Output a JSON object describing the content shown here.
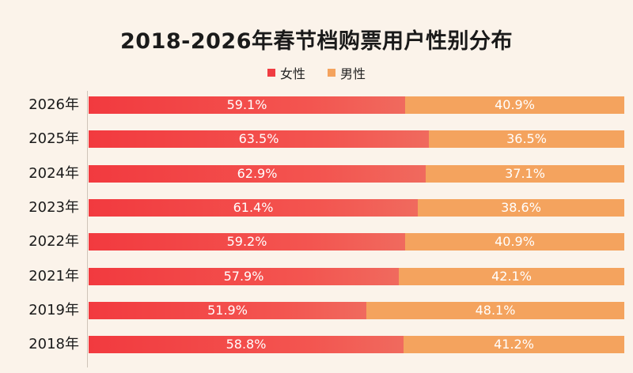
{
  "title": "2018-2026年春节档购票用户性别分布",
  "legend": [
    {
      "label": "女性",
      "color": "#f03c42"
    },
    {
      "label": "男性",
      "color": "#f4a35e"
    }
  ],
  "chart_data": {
    "type": "bar",
    "orientation": "horizontal",
    "stacked": true,
    "title": "2018-2026年春节档购票用户性别分布",
    "categories": [
      "2026年",
      "2025年",
      "2024年",
      "2023年",
      "2022年",
      "2021年",
      "2019年",
      "2018年"
    ],
    "series": [
      {
        "name": "女性",
        "color": "#f03c42",
        "values": [
          59.1,
          63.5,
          62.9,
          61.4,
          59.2,
          57.9,
          51.9,
          58.8
        ],
        "labels": [
          "59.1%",
          "63.5%",
          "62.9%",
          "61.4%",
          "59.2%",
          "57.9%",
          "51.9%",
          "58.8%"
        ]
      },
      {
        "name": "男性",
        "color": "#f4a35e",
        "values": [
          40.9,
          36.5,
          37.1,
          38.6,
          40.9,
          42.1,
          48.1,
          41.2
        ],
        "labels": [
          "40.9%",
          "36.5%",
          "37.1%",
          "38.6%",
          "40.9%",
          "42.1%",
          "48.1%",
          "41.2%"
        ]
      }
    ],
    "legend": "top-center",
    "grid": false
  }
}
